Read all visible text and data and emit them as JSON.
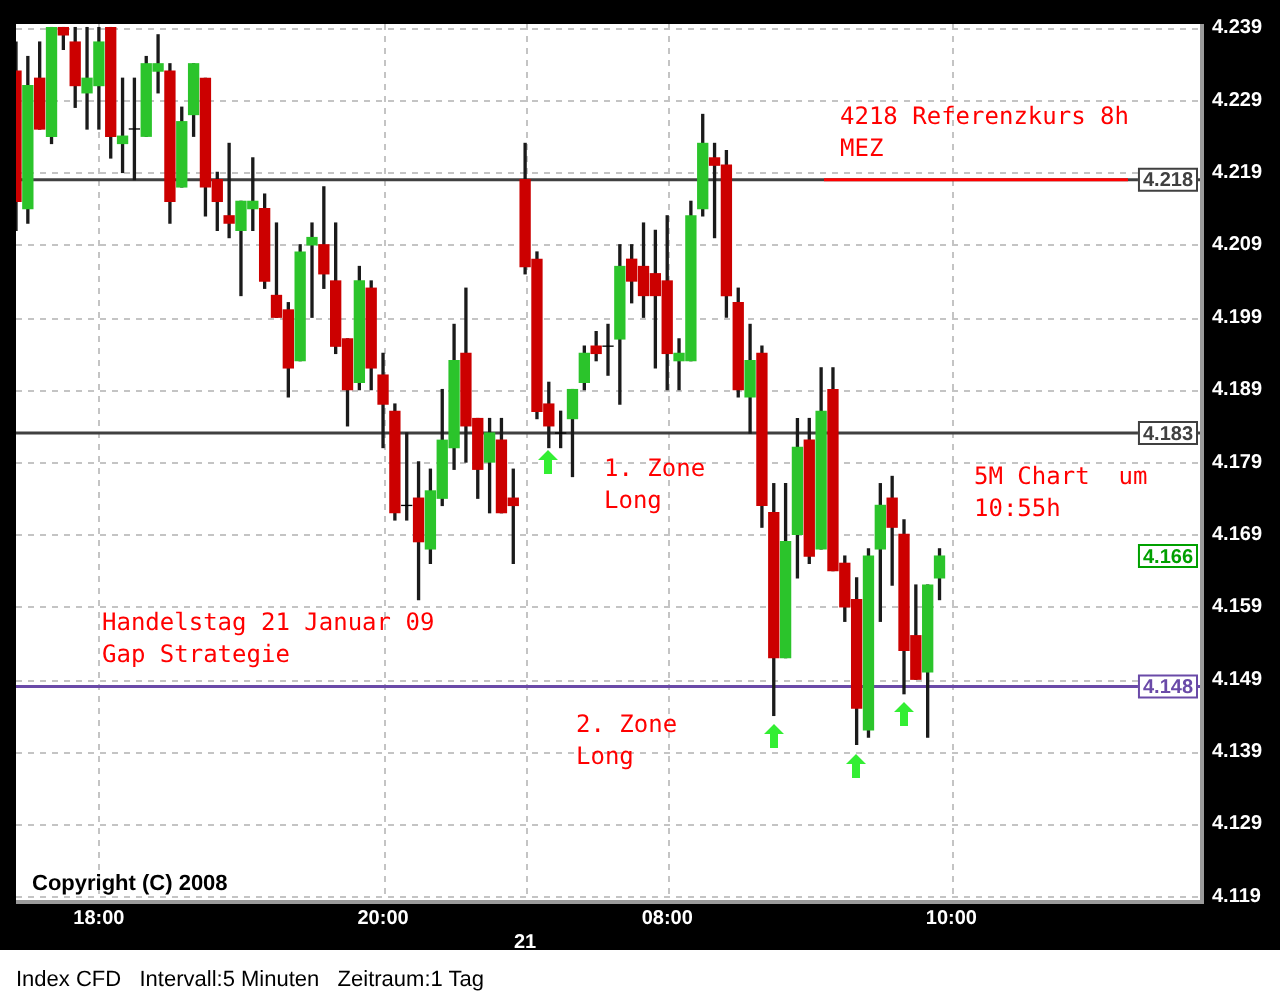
{
  "chart_data": {
    "type": "candlestick",
    "categories": [
      null,
      null,
      null,
      null,
      null,
      null,
      null,
      "18:00",
      null,
      null,
      null,
      null,
      null,
      null,
      null,
      null,
      null,
      null,
      null,
      null,
      null,
      null,
      null,
      null,
      null,
      null,
      null,
      null,
      null,
      null,
      null,
      "20:00",
      null,
      null,
      null,
      null,
      null,
      null,
      null,
      null,
      null,
      null,
      null,
      "21",
      null,
      null,
      null,
      null,
      null,
      null,
      null,
      null,
      null,
      null,
      null,
      "08:00",
      null,
      null,
      null,
      null,
      null,
      null,
      null,
      null,
      null,
      null,
      null,
      null,
      null,
      null,
      null,
      null,
      null,
      null,
      null,
      null,
      null,
      null,
      null,
      "10:00",
      null,
      null,
      null,
      null,
      null,
      null,
      null,
      null,
      null,
      null,
      null,
      null,
      null,
      null,
      null,
      null,
      null,
      null,
      null,
      null,
      null
    ],
    "ohlc": [
      [
        4.233,
        4.237,
        4.211,
        4.215
      ],
      [
        4.214,
        4.235,
        4.212,
        4.231
      ],
      [
        4.232,
        4.237,
        4.225,
        4.225
      ],
      [
        4.224,
        4.239,
        4.223,
        4.239
      ],
      [
        4.239,
        4.239,
        4.236,
        4.238
      ],
      [
        4.237,
        4.239,
        4.228,
        4.231
      ],
      [
        4.23,
        4.239,
        4.225,
        4.232
      ],
      [
        4.231,
        4.239,
        4.225,
        4.237
      ],
      [
        4.239,
        4.239,
        4.221,
        4.224
      ],
      [
        4.223,
        4.232,
        4.219,
        4.224
      ],
      [
        4.225,
        4.232,
        4.218,
        4.225
      ],
      [
        4.224,
        4.235,
        4.224,
        4.234
      ],
      [
        4.233,
        4.238,
        4.23,
        4.234
      ],
      [
        4.233,
        4.234,
        4.212,
        4.215
      ],
      [
        4.217,
        4.228,
        4.217,
        4.226
      ],
      [
        4.227,
        4.234,
        4.224,
        4.234
      ],
      [
        4.232,
        4.232,
        4.213,
        4.217
      ],
      [
        4.218,
        4.219,
        4.211,
        4.215
      ],
      [
        4.213,
        4.223,
        4.21,
        4.212
      ],
      [
        4.211,
        4.215,
        4.202,
        4.215
      ],
      [
        4.214,
        4.221,
        4.211,
        4.215
      ],
      [
        4.214,
        4.216,
        4.203,
        4.204
      ],
      [
        4.202,
        4.212,
        4.199,
        4.199
      ],
      [
        4.2,
        4.201,
        4.188,
        4.192
      ],
      [
        4.193,
        4.209,
        4.193,
        4.208
      ],
      [
        4.209,
        4.212,
        4.199,
        4.21
      ],
      [
        4.209,
        4.217,
        4.203,
        4.205
      ],
      [
        4.204,
        4.212,
        4.194,
        4.195
      ],
      [
        4.196,
        4.196,
        4.184,
        4.189
      ],
      [
        4.19,
        4.206,
        4.189,
        4.204
      ],
      [
        4.203,
        4.204,
        4.189,
        4.192
      ],
      [
        4.191,
        4.194,
        4.181,
        4.187
      ],
      [
        4.186,
        4.187,
        4.171,
        4.172
      ],
      [
        4.173,
        4.183,
        4.171,
        4.173
      ],
      [
        4.174,
        4.179,
        4.16,
        4.168
      ],
      [
        4.167,
        4.178,
        4.165,
        4.175
      ],
      [
        4.174,
        4.189,
        4.173,
        4.182
      ],
      [
        4.181,
        4.198,
        4.178,
        4.193
      ],
      [
        4.194,
        4.203,
        4.179,
        4.184
      ],
      [
        4.185,
        4.185,
        4.174,
        4.178
      ],
      [
        4.179,
        4.185,
        4.172,
        4.183
      ],
      [
        4.182,
        4.185,
        4.172,
        4.172
      ],
      [
        4.174,
        4.178,
        4.165,
        4.173
      ],
      [
        4.218,
        4.223,
        4.205,
        4.206
      ],
      [
        4.207,
        4.208,
        4.185,
        4.186
      ],
      [
        4.187,
        4.19,
        4.181,
        4.184
      ],
      [
        4.183,
        4.186,
        4.181,
        4.183
      ],
      [
        4.185,
        4.189,
        4.177,
        4.189
      ],
      [
        4.19,
        4.195,
        4.189,
        4.194
      ],
      [
        4.195,
        4.197,
        4.193,
        4.194
      ],
      [
        4.195,
        4.198,
        4.191,
        4.195
      ],
      [
        4.196,
        4.209,
        4.187,
        4.206
      ],
      [
        4.207,
        4.209,
        4.201,
        4.204
      ],
      [
        4.206,
        4.212,
        4.199,
        4.202
      ],
      [
        4.205,
        4.211,
        4.192,
        4.202
      ],
      [
        4.204,
        4.213,
        4.189,
        4.194
      ],
      [
        4.193,
        4.196,
        4.189,
        4.194
      ],
      [
        4.193,
        4.215,
        4.193,
        4.213
      ],
      [
        4.214,
        4.227,
        4.213,
        4.223
      ],
      [
        4.221,
        4.223,
        4.21,
        4.22
      ],
      [
        4.22,
        4.222,
        4.199,
        4.202
      ],
      [
        4.201,
        4.203,
        4.188,
        4.189
      ],
      [
        4.188,
        4.198,
        4.183,
        4.193
      ],
      [
        4.194,
        4.195,
        4.17,
        4.173
      ],
      [
        4.172,
        4.176,
        4.144,
        4.152
      ],
      [
        4.152,
        4.176,
        4.152,
        4.168
      ],
      [
        4.169,
        4.185,
        4.163,
        4.181
      ],
      [
        4.182,
        4.185,
        4.165,
        4.166
      ],
      [
        4.167,
        4.192,
        4.167,
        4.186
      ],
      [
        4.189,
        4.192,
        4.164,
        4.164
      ],
      [
        4.165,
        4.166,
        4.157,
        4.159
      ],
      [
        4.16,
        4.163,
        4.14,
        4.145
      ],
      [
        4.142,
        4.167,
        4.141,
        4.166
      ],
      [
        4.167,
        4.176,
        4.157,
        4.173
      ],
      [
        4.174,
        4.177,
        4.162,
        4.17
      ],
      [
        4.169,
        4.171,
        4.147,
        4.153
      ],
      [
        4.155,
        4.162,
        4.149,
        4.149
      ],
      [
        4.15,
        4.162,
        4.141,
        4.162
      ],
      [
        4.163,
        4.167,
        4.16,
        4.166
      ],
      null,
      null,
      null,
      null,
      null,
      null,
      null,
      null,
      null,
      null,
      null,
      null,
      null,
      null,
      null,
      null,
      null,
      null,
      null,
      null,
      null,
      null
    ],
    "colors": [
      "#cc0000",
      "#2bc42b",
      "#cc0000",
      "#2bc42b",
      "#cc0000",
      "#cc0000",
      "#2bc42b",
      "#2bc42b",
      "#cc0000",
      "#2bc42b",
      "#000000",
      "#2bc42b",
      "#2bc42b",
      "#cc0000",
      "#2bc42b",
      "#2bc42b",
      "#cc0000",
      "#cc0000",
      "#cc0000",
      "#2bc42b",
      "#2bc42b",
      "#cc0000",
      "#cc0000",
      "#cc0000",
      "#2bc42b",
      "#2bc42b",
      "#cc0000",
      "#cc0000",
      "#cc0000",
      "#2bc42b",
      "#cc0000",
      "#cc0000",
      "#cc0000",
      "#000000",
      "#cc0000",
      "#2bc42b",
      "#2bc42b",
      "#2bc42b",
      "#cc0000",
      "#cc0000",
      "#2bc42b",
      "#cc0000",
      "#cc0000",
      "#cc0000",
      "#cc0000",
      "#cc0000",
      "#000000",
      "#2bc42b",
      "#2bc42b",
      "#cc0000",
      "#000000",
      "#2bc42b",
      "#cc0000",
      "#cc0000",
      "#cc0000",
      "#cc0000",
      "#2bc42b",
      "#2bc42b",
      "#2bc42b",
      "#cc0000",
      "#cc0000",
      "#cc0000",
      "#2bc42b",
      "#cc0000",
      "#cc0000",
      "#2bc42b",
      "#2bc42b",
      "#cc0000",
      "#2bc42b",
      "#cc0000",
      "#cc0000",
      "#cc0000",
      "#2bc42b",
      "#2bc42b",
      "#cc0000",
      "#cc0000",
      "#cc0000",
      "#2bc42b",
      "#2bc42b",
      null,
      null,
      null,
      null,
      null,
      null,
      null,
      null,
      null,
      null,
      null,
      null,
      null,
      null,
      null,
      null,
      null,
      null,
      null,
      null,
      null,
      null
    ],
    "ylim": [
      4.1185,
      4.2395
    ],
    "yticks": [
      4.239,
      4.229,
      4.219,
      4.209,
      4.199,
      4.189,
      4.179,
      4.169,
      4.159,
      4.149,
      4.139,
      4.129,
      4.119
    ],
    "grid": true,
    "ref_lines": [
      {
        "axis": "y",
        "value": 4.218,
        "label": "4.218",
        "color": "#404040"
      },
      {
        "axis": "y",
        "value": 4.183,
        "label": "4.183",
        "color": "#404040"
      },
      {
        "axis": "y",
        "value": 4.148,
        "label": "4.148",
        "color": "#6a4aa8"
      }
    ],
    "annotations": [
      {
        "text": "4218 Referenzkurs 8h\nMEZ",
        "y": 4.218
      },
      {
        "text": "4.166",
        "y": 4.166
      },
      "1. Zone\nLong",
      "2. Zone\nLong",
      "5M Chart  um\n10:55h",
      "Handelstag 21 Januar 09\nGap Strategie",
      "Copyright (C) 2008",
      "Index CFD   Intervall:5 Minuten   Zeitraum:1 Tag"
    ]
  }
}
